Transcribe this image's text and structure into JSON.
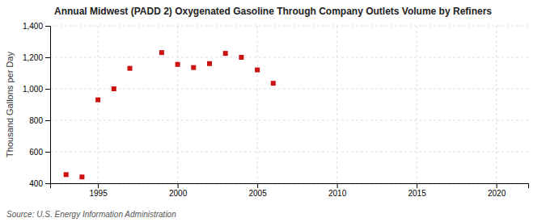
{
  "chart_data": {
    "type": "scatter",
    "title": "Annual Midwest (PADD 2) Oxygenated Gasoline Through Company Outlets Volume by Refiners",
    "ylabel": "Thousand Gallons per Day",
    "annotations": [
      "Source: U.S. Energy Information Administration"
    ],
    "color": "#cc1111",
    "marker": "square",
    "grid": true,
    "xlim": [
      1992,
      2022
    ],
    "ylim": [
      400,
      1400
    ],
    "xticks": [
      1995,
      2000,
      2005,
      2010,
      2015,
      2020
    ],
    "yticks": [
      400,
      600,
      800,
      {
        "value": 1000,
        "label": "1,000"
      },
      {
        "value": 1200,
        "label": "1,200"
      },
      {
        "value": 1400,
        "label": "1,400"
      }
    ],
    "x": [
      1993,
      1994,
      1995,
      1996,
      1997,
      1999,
      2000,
      2001,
      2002,
      2003,
      2004,
      2005,
      2006
    ],
    "values": [
      455,
      440,
      930,
      1000,
      1130,
      1230,
      1155,
      1135,
      1160,
      1225,
      1200,
      1120,
      1035
    ]
  }
}
